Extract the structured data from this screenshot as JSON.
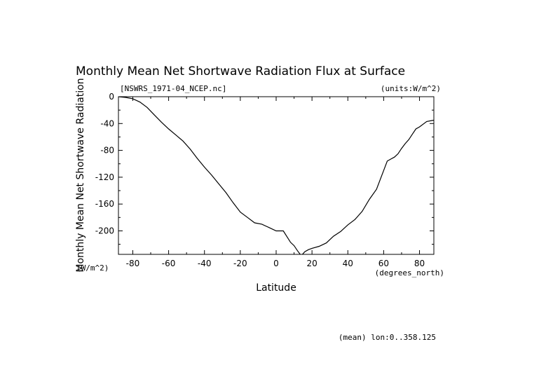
{
  "chart_data": {
    "type": "line",
    "title": "Monthly Mean Net Shortwave Radiation Flux at Surface",
    "file_label": "[NSWRS_1971-04_NCEP.nc]",
    "units_label": "(units:W/m^2)",
    "xlabel": "Latitude",
    "x_units": "(degrees_north)",
    "ylabel": "Monthly Mean Net Shortwave Radiation",
    "y_units": "(W/m^2)",
    "footnote": "(mean) lon:0..358.125",
    "xlim": [
      -88,
      88
    ],
    "ylim": [
      -235,
      0
    ],
    "x_ticks": [
      -80,
      -60,
      -40,
      -20,
      0,
      20,
      40,
      60,
      80
    ],
    "y_ticks": [
      0,
      -40,
      -80,
      -120,
      -160,
      -200
    ],
    "grid": false,
    "series": [
      {
        "x": [
          -88,
          -84,
          -80,
          -76,
          -72,
          -68,
          -64,
          -60,
          -56,
          -52,
          -48,
          -44,
          -40,
          -36,
          -32,
          -28,
          -24,
          -20,
          -16,
          -12,
          -8,
          -4,
          0,
          4,
          8,
          10,
          12,
          14,
          16,
          18,
          20,
          24,
          28,
          32,
          36,
          40,
          44,
          48,
          52,
          56,
          60,
          62,
          64,
          66,
          68,
          70,
          72,
          74,
          76,
          78,
          80,
          84,
          88
        ],
        "y": [
          0,
          -1,
          -3,
          -8,
          -16,
          -27,
          -38,
          -48,
          -57,
          -66,
          -78,
          -92,
          -105,
          -117,
          -130,
          -143,
          -158,
          -172,
          -180,
          -188,
          -190,
          -195,
          -200,
          -200,
          -217,
          -222,
          -230,
          -237,
          -231,
          -228,
          -226,
          -223,
          -218,
          -208,
          -201,
          -191,
          -183,
          -171,
          -153,
          -138,
          -110,
          -96,
          -93,
          -90,
          -85,
          -77,
          -70,
          -64,
          -56,
          -48,
          -45,
          -37,
          -35
        ]
      }
    ]
  }
}
